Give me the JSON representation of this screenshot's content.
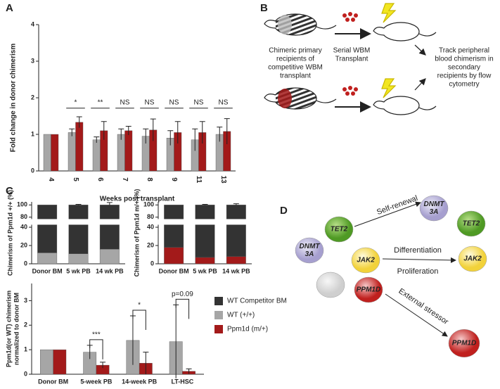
{
  "panel_labels": [
    "A",
    "B",
    "C",
    "D"
  ],
  "chart_data": [
    {
      "type": "bar",
      "ylabel": "Fold change in donor chimerism",
      "xlabel": "Weeks post transplant",
      "categories": [
        "4",
        "5",
        "6",
        "7",
        "8",
        "9",
        "11",
        "13"
      ],
      "xtick_rotation": 90,
      "ylim": [
        0,
        4
      ],
      "yticks": [
        0,
        1,
        2,
        3,
        4
      ],
      "series": [
        {
          "color": "#a6a6a6",
          "values": [
            1.0,
            1.05,
            0.85,
            1.0,
            0.95,
            0.9,
            0.85,
            1.0
          ],
          "errors": [
            0,
            0.1,
            0.08,
            0.15,
            0.2,
            0.2,
            0.3,
            0.2
          ]
        },
        {
          "color": "#a31a1a",
          "values": [
            1.0,
            1.33,
            1.1,
            1.1,
            1.12,
            1.05,
            1.05,
            1.08
          ],
          "errors": [
            0,
            0.15,
            0.25,
            0.12,
            0.3,
            0.3,
            0.3,
            0.35
          ]
        }
      ],
      "significance": [
        null,
        "*",
        "**",
        "NS",
        "NS",
        "NS",
        "NS",
        "NS"
      ],
      "significance_style": "line"
    },
    {
      "type": "bar",
      "stacked": true,
      "ylabel": "Chimerism of Ppm1d +/+ (%)",
      "categories": [
        "Donor BM",
        "5 wk PB",
        "14 wk PB"
      ],
      "ylim": [
        0,
        105
      ],
      "ybreak": [
        42,
        78
      ],
      "yticks": [
        0,
        20,
        40,
        80,
        100
      ],
      "series": [
        {
          "name": "WT (+/+)",
          "color": "#a6a6a6",
          "values": [
            12,
            11,
            16
          ],
          "errors": [
            0,
            3,
            12
          ]
        },
        {
          "name": "WT Competitor BM",
          "color": "#333333",
          "values": [
            88,
            89,
            84
          ],
          "errors": [
            0,
            1,
            4
          ]
        }
      ]
    },
    {
      "type": "bar",
      "stacked": true,
      "ylabel": "Chimerism of Ppm1d m/+ (%)",
      "categories": [
        "Donor BM",
        "5 wk PB",
        "14 wk PB"
      ],
      "ylim": [
        0,
        105
      ],
      "ybreak": [
        42,
        78
      ],
      "yticks": [
        0,
        20,
        40,
        80,
        100
      ],
      "series": [
        {
          "name": "Ppm1d (m/+)",
          "color": "#a31a1a",
          "values": [
            18,
            7,
            8
          ],
          "errors": [
            0,
            2,
            6
          ]
        },
        {
          "color": "#333333",
          "values": [
            82,
            93,
            92
          ],
          "errors": [
            0,
            1,
            2
          ]
        }
      ]
    },
    {
      "type": "bar",
      "ylabel": [
        "Ppm1d(or WT) chimerism",
        "normalized to donor BM"
      ],
      "categories": [
        "Donor BM",
        "5-week PB",
        "14-week PB",
        "LT-HSC"
      ],
      "ylim": [
        0,
        3.7
      ],
      "yticks": [
        0,
        1,
        2,
        3
      ],
      "series": [
        {
          "color": "#a6a6a6",
          "values": [
            1.0,
            0.9,
            1.38,
            1.33
          ],
          "errors": [
            0,
            0.28,
            1.0,
            1.5
          ]
        },
        {
          "color": "#a31a1a",
          "values": [
            1.0,
            0.37,
            0.45,
            0.12
          ],
          "errors": [
            0,
            0.12,
            0.45,
            0.1
          ]
        }
      ],
      "significance": [
        null,
        "***",
        "*",
        "p=0.09"
      ],
      "significance_style": "bracket"
    }
  ],
  "diagram_b": {
    "left_text": [
      "Chimeric primary",
      "recipients of",
      "competitive WBM",
      "transplant"
    ],
    "middle_text": [
      "Serial WBM",
      "Transplant"
    ],
    "right_text": [
      "Track peripheral",
      "blood chimerism in",
      "secondary",
      "recipients by flow",
      "cytometry"
    ]
  },
  "diagram_d": {
    "nodes": [
      [
        "TET2"
      ],
      [
        "DNMT",
        "3A"
      ],
      [
        "JAK2"
      ],
      [
        "PPM1D"
      ]
    ],
    "outcomes": [
      [
        "DNMT",
        "3A"
      ],
      [
        "TET2"
      ],
      [
        "JAK2"
      ],
      [
        "PPM1D"
      ]
    ],
    "arrows": [
      "Self-renewal",
      "Differentiation",
      "Proliferation",
      "External stressor"
    ]
  }
}
